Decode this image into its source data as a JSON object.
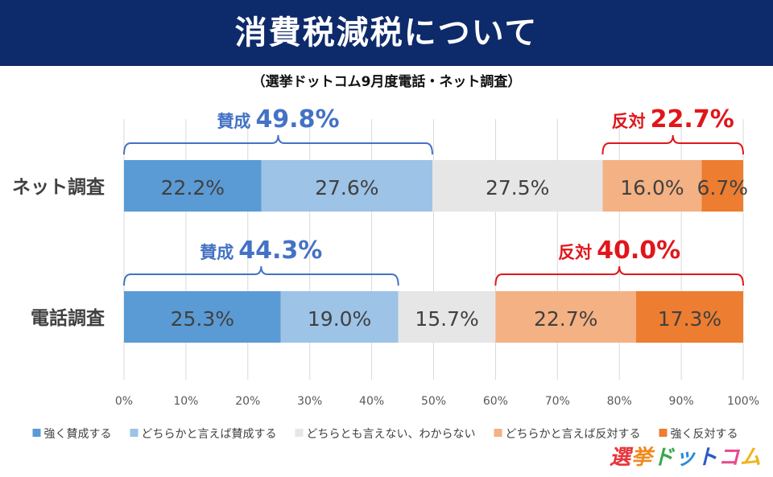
{
  "header": {
    "title": "消費税減税について",
    "subtitle": "（選挙ドットコム9月度電話・ネット調査）"
  },
  "brand": {
    "name": "選挙ドットコム",
    "colors": [
      "#e8343c",
      "#f08a1c",
      "#38a846",
      "#2b8bd8",
      "#2b5bc8",
      "#e84a8c",
      "#f0b41c"
    ]
  },
  "colors": {
    "strong_for": "#5b9bd5",
    "for": "#9dc3e6",
    "neutral": "#e7e6e6",
    "against": "#f4b183",
    "strong_against": "#ed7d31",
    "for_bracket": "#4472c4",
    "against_bracket": "#e0161b",
    "title_bg": "#0d2a6b"
  },
  "chart_data": {
    "type": "bar",
    "orientation": "horizontal",
    "stacked": true,
    "categories": [
      "ネット調査",
      "電話調査"
    ],
    "series": [
      {
        "name": "強く賛成する",
        "values": [
          22.2,
          25.3
        ],
        "labels": [
          "22.2%",
          "25.3%"
        ]
      },
      {
        "name": "どちらかと言えば賛成する",
        "values": [
          27.6,
          19.0
        ],
        "labels": [
          "27.6%",
          "19.0%"
        ]
      },
      {
        "name": "どちらとも言えない、わからない",
        "values": [
          27.5,
          15.7
        ],
        "labels": [
          "27.5%",
          "15.7%"
        ]
      },
      {
        "name": "どちらかと言えば反対する",
        "values": [
          16.0,
          22.7
        ],
        "labels": [
          "16.0%",
          "22.7%"
        ]
      },
      {
        "name": "強く反対する",
        "values": [
          6.7,
          17.3
        ],
        "labels": [
          "6.7%",
          "17.3%"
        ]
      }
    ],
    "annotations": [
      {
        "row": 0,
        "group": "for",
        "label": "賛成",
        "value_text": "49.8%",
        "from": 0,
        "to": 49.8
      },
      {
        "row": 0,
        "group": "against",
        "label": "反対",
        "value_text": "22.7%",
        "from": 77.3,
        "to": 100
      },
      {
        "row": 1,
        "group": "for",
        "label": "賛成",
        "value_text": "44.3%",
        "from": 0,
        "to": 44.3
      },
      {
        "row": 1,
        "group": "against",
        "label": "反対",
        "value_text": "40.0%",
        "from": 60.0,
        "to": 100
      }
    ],
    "xlim": [
      0,
      100
    ],
    "xticks": [
      "0%",
      "10%",
      "20%",
      "30%",
      "40%",
      "50%",
      "60%",
      "70%",
      "80%",
      "90%",
      "100%"
    ],
    "grid": true,
    "legend": "bottom"
  }
}
